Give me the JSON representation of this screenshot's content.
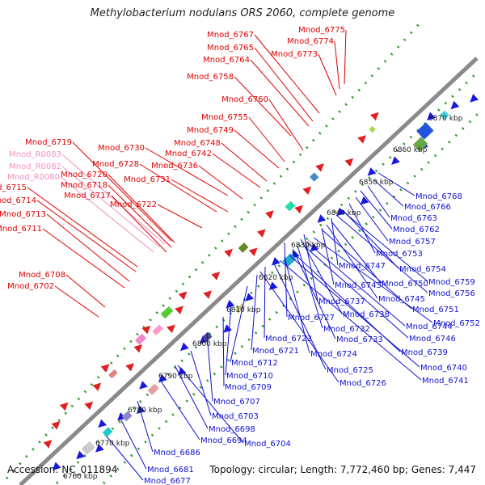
{
  "title": "Methylobacterium nodulans ORS 2060, complete genome",
  "footer": {
    "accession": "Accession: NC_011894",
    "summary": "Topology: circular; Length: 7,772,460 bp; Genes: 7,447"
  },
  "colors": {
    "backbone": "#8a8a8a",
    "forward_gene": "#e02020",
    "reverse_gene": "#1818e0",
    "forward_label": "#e00000",
    "reverse_label": "#1010d0",
    "rna_label": "#f090c0",
    "dots": "#2a9a2a"
  },
  "ticks": [
    "6760 kbp",
    "6770 kbp",
    "6780 kbp",
    "6790 kbp",
    "6800 kbp",
    "6810 kbp",
    "6820 kbp",
    "6830 kbp",
    "6840 kbp",
    "6850 kbp",
    "6860 kbp",
    "6870 kbp"
  ],
  "forward_labels": [
    {
      "text": "Mnod_6775",
      "color": "forward"
    },
    {
      "text": "Mnod_6774",
      "color": "forward"
    },
    {
      "text": "Mnod_6767",
      "color": "forward"
    },
    {
      "text": "Mnod_6773",
      "color": "forward"
    },
    {
      "text": "Mnod_6765",
      "color": "forward"
    },
    {
      "text": "Mnod_6764",
      "color": "forward"
    },
    {
      "text": "Mnod_6758",
      "color": "forward"
    },
    {
      "text": "Mnod_6760",
      "color": "forward"
    },
    {
      "text": "Mnod_6755",
      "color": "forward"
    },
    {
      "text": "Mnod_6749",
      "color": "forward"
    },
    {
      "text": "Mnod_6748",
      "color": "forward"
    },
    {
      "text": "Mnod_6742",
      "color": "forward"
    },
    {
      "text": "Mnod_6730",
      "color": "forward"
    },
    {
      "text": "Mnod_6736",
      "color": "forward"
    },
    {
      "text": "Mnod_6719",
      "color": "forward"
    },
    {
      "text": "Mnod_6728",
      "color": "forward"
    },
    {
      "text": "Mnod_R0083",
      "color": "rna"
    },
    {
      "text": "Mnod_R0082",
      "color": "rna"
    },
    {
      "text": "Mnod_6731",
      "color": "forward"
    },
    {
      "text": "Mnod_6720",
      "color": "forward"
    },
    {
      "text": "Mnod_R0080",
      "color": "rna"
    },
    {
      "text": "Mnod_6718",
      "color": "forward"
    },
    {
      "text": "Mnod_6715",
      "color": "forward"
    },
    {
      "text": "Mnod_6717",
      "color": "forward"
    },
    {
      "text": "Mnod_6714",
      "color": "forward"
    },
    {
      "text": "Mnod_6722",
      "color": "forward"
    },
    {
      "text": "Mnod_6713",
      "color": "forward"
    },
    {
      "text": "Mnod_6711",
      "color": "forward"
    },
    {
      "text": "Mnod_6708",
      "color": "forward"
    },
    {
      "text": "Mnod_6702",
      "color": "forward"
    }
  ],
  "reverse_labels": [
    "Mnod_6768",
    "Mnod_6766",
    "Mnod_6763",
    "Mnod_6762",
    "Mnod_6757",
    "Mnod_6753",
    "Mnod_6754",
    "Mnod_6747",
    "Mnod_6759",
    "Mnod_6743",
    "Mnod_6750",
    "Mnod_6756",
    "Mnod_6737",
    "Mnod_6745",
    "Mnod_6751",
    "Mnod_6738",
    "Mnod_6727",
    "Mnod_6752",
    "Mnod_6732",
    "Mnod_6744",
    "Mnod_6733",
    "Mnod_6746",
    "Mnod_6723",
    "Mnod_6721",
    "Mnod_6724",
    "Mnod_6739",
    "Mnod_6712",
    "Mnod_6740",
    "Mnod_6725",
    "Mnod_6710",
    "Mnod_6741",
    "Mnod_6726",
    "Mnod_6709",
    "Mnod_6707",
    "Mnod_6703",
    "Mnod_6698",
    "Mnod_6694",
    "Mnod_6704",
    "Mnod_6686",
    "Mnod_6681",
    "Mnod_6677"
  ]
}
